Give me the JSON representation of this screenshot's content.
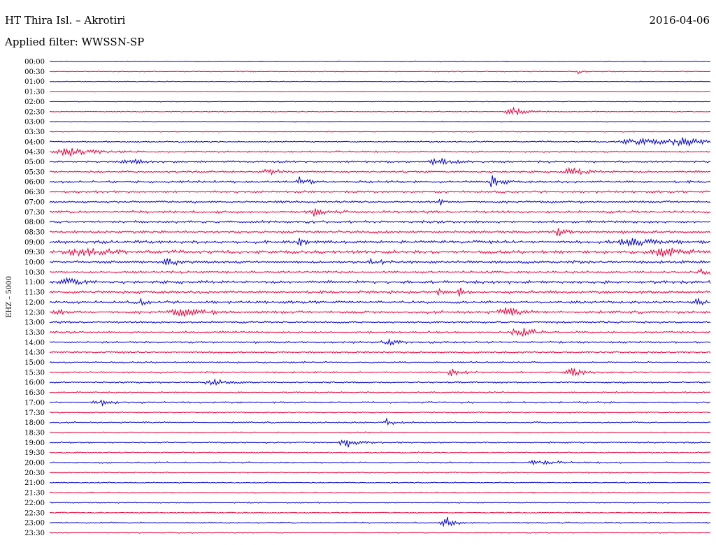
{
  "header": {
    "station": "HT Thira Isl. – Akrotiri",
    "date": "2016-04-06",
    "filter": "Applied filter: WWSSN-SP"
  },
  "chart_data": {
    "type": "line",
    "title": "HT Thira Isl. – Akrotiri",
    "ylabel": "EHZ – 5000",
    "row_labels": [
      "00:00",
      "00:30",
      "01:00",
      "01:30",
      "02:00",
      "02:30",
      "03:00",
      "03:30",
      "04:00",
      "04:30",
      "05:00",
      "05:30",
      "06:00",
      "06:30",
      "07:00",
      "07:30",
      "08:00",
      "08:30",
      "09:00",
      "09:30",
      "10:00",
      "10:30",
      "11:00",
      "11:30",
      "12:00",
      "12:30",
      "13:00",
      "13:30",
      "14:00",
      "14:30",
      "15:00",
      "15:30",
      "16:00",
      "16:30",
      "17:00",
      "17:30",
      "18:00",
      "18:30",
      "19:00",
      "19:30",
      "20:00",
      "20:30",
      "21:00",
      "21:30",
      "22:00",
      "22:30",
      "23:00",
      "23:30"
    ],
    "colors": [
      "#0000cc",
      "#e8003a"
    ],
    "noise": [
      0.6,
      0.6,
      0.5,
      0.5,
      0.5,
      0.6,
      0.6,
      0.6,
      0.9,
      1.0,
      1.2,
      1.3,
      1.4,
      1.3,
      1.4,
      1.5,
      1.6,
      1.6,
      1.8,
      2.0,
      1.7,
      1.4,
      1.8,
      1.7,
      1.6,
      1.6,
      1.3,
      1.3,
      1.2,
      1.1,
      1.0,
      1.0,
      1.0,
      0.9,
      1.0,
      0.8,
      0.9,
      0.8,
      0.9,
      0.8,
      0.9,
      0.8,
      0.7,
      0.7,
      0.7,
      0.7,
      0.8,
      0.7
    ],
    "events": [
      {
        "row": 1,
        "t": 0.8,
        "amp": 3,
        "w": 0.004
      },
      {
        "row": 5,
        "t": 0.7,
        "amp": 6,
        "w": 0.015
      },
      {
        "row": 8,
        "t": 0.89,
        "amp": 5,
        "w": 0.04
      },
      {
        "row": 8,
        "t": 0.96,
        "amp": 5,
        "w": 0.03
      },
      {
        "row": 9,
        "t": 0.03,
        "amp": 6,
        "w": 0.03
      },
      {
        "row": 10,
        "t": 0.12,
        "amp": 5,
        "w": 0.015
      },
      {
        "row": 10,
        "t": 0.59,
        "amp": 6,
        "w": 0.02
      },
      {
        "row": 11,
        "t": 0.33,
        "amp": 6,
        "w": 0.01
      },
      {
        "row": 11,
        "t": 0.79,
        "amp": 5,
        "w": 0.02
      },
      {
        "row": 12,
        "t": 0.38,
        "amp": 8,
        "w": 0.008
      },
      {
        "row": 12,
        "t": 0.67,
        "amp": 9,
        "w": 0.01
      },
      {
        "row": 14,
        "t": 0.59,
        "amp": 14,
        "w": 0.002
      },
      {
        "row": 15,
        "t": 0.4,
        "amp": 6,
        "w": 0.01
      },
      {
        "row": 17,
        "t": 0.77,
        "amp": 6,
        "w": 0.01
      },
      {
        "row": 18,
        "t": 0.38,
        "amp": 8,
        "w": 0.006
      },
      {
        "row": 18,
        "t": 0.88,
        "amp": 5,
        "w": 0.04
      },
      {
        "row": 19,
        "t": 0.05,
        "amp": 6,
        "w": 0.03
      },
      {
        "row": 19,
        "t": 0.93,
        "amp": 6,
        "w": 0.03
      },
      {
        "row": 20,
        "t": 0.18,
        "amp": 6,
        "w": 0.01
      },
      {
        "row": 20,
        "t": 0.49,
        "amp": 7,
        "w": 0.01
      },
      {
        "row": 21,
        "t": 0.99,
        "amp": 6,
        "w": 0.01
      },
      {
        "row": 22,
        "t": 0.03,
        "amp": 6,
        "w": 0.015
      },
      {
        "row": 23,
        "t": 0.59,
        "amp": 8,
        "w": 0.006
      },
      {
        "row": 23,
        "t": 0.62,
        "amp": 7,
        "w": 0.006
      },
      {
        "row": 24,
        "t": 0.14,
        "amp": 6,
        "w": 0.006
      },
      {
        "row": 24,
        "t": 0.98,
        "amp": 6,
        "w": 0.01
      },
      {
        "row": 25,
        "t": 0.01,
        "amp": 7,
        "w": 0.006
      },
      {
        "row": 25,
        "t": 0.69,
        "amp": 8,
        "w": 0.015
      },
      {
        "row": 25,
        "t": 0.2,
        "amp": 5,
        "w": 0.03
      },
      {
        "row": 27,
        "t": 0.71,
        "amp": 10,
        "w": 0.015
      },
      {
        "row": 28,
        "t": 0.51,
        "amp": 5,
        "w": 0.01
      },
      {
        "row": 31,
        "t": 0.61,
        "amp": 6,
        "w": 0.01
      },
      {
        "row": 31,
        "t": 0.79,
        "amp": 6,
        "w": 0.015
      },
      {
        "row": 32,
        "t": 0.25,
        "amp": 4,
        "w": 0.02
      },
      {
        "row": 34,
        "t": 0.08,
        "amp": 4,
        "w": 0.02
      },
      {
        "row": 36,
        "t": 0.51,
        "amp": 8,
        "w": 0.01
      },
      {
        "row": 38,
        "t": 0.45,
        "amp": 9,
        "w": 0.015
      },
      {
        "row": 40,
        "t": 0.74,
        "amp": 4,
        "w": 0.02
      },
      {
        "row": 46,
        "t": 0.6,
        "amp": 9,
        "w": 0.01
      }
    ]
  }
}
